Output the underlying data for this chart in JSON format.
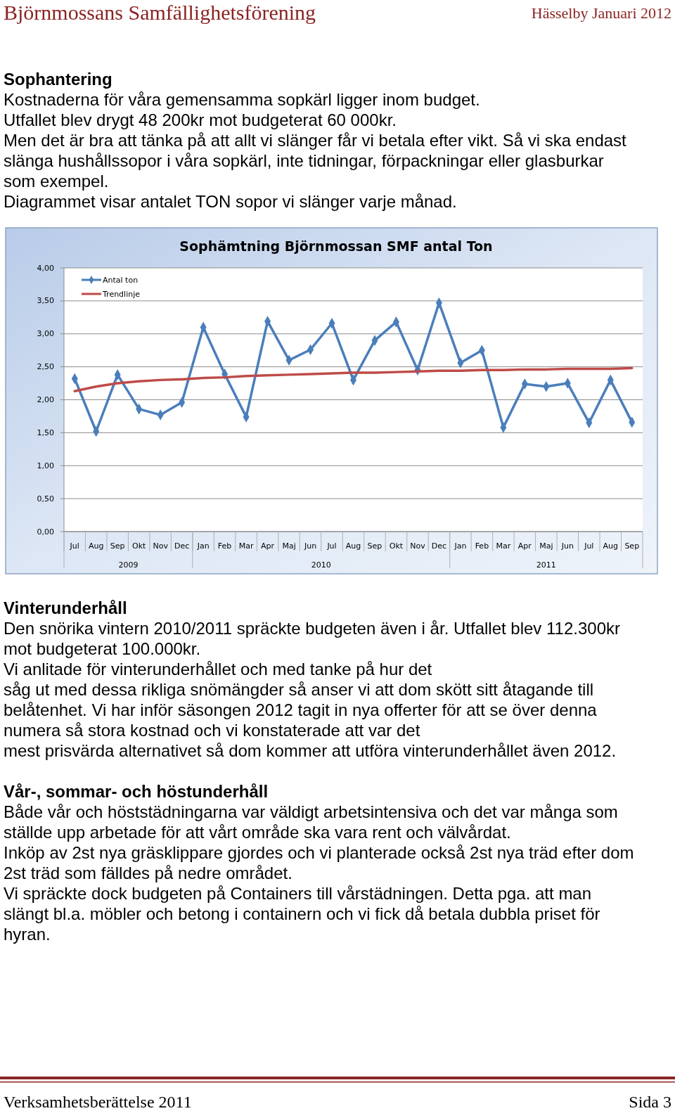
{
  "chart_data": {
    "type": "line",
    "title": "Sophämtning Björnmossan SMF antal Ton",
    "categories": [
      "Jul",
      "Aug",
      "Sep",
      "Okt",
      "Nov",
      "Dec",
      "Jan",
      "Feb",
      "Mar",
      "Apr",
      "Maj",
      "Jun",
      "Jul",
      "Aug",
      "Sep",
      "Okt",
      "Nov",
      "Dec",
      "Jan",
      "Feb",
      "Mar",
      "Apr",
      "Maj",
      "Jun",
      "Jul",
      "Aug",
      "Sep"
    ],
    "series": [
      {
        "name": "Antal ton",
        "color": "#4a7ebb",
        "marker": "diamond",
        "values": [
          2.32,
          1.52,
          2.38,
          1.86,
          1.77,
          1.96,
          3.1,
          2.39,
          1.74,
          3.19,
          2.6,
          2.76,
          3.16,
          2.3,
          2.9,
          3.18,
          2.45,
          3.47,
          2.56,
          2.75,
          1.58,
          2.24,
          2.2,
          2.25,
          1.65,
          2.3,
          1.66
        ]
      },
      {
        "name": "Trendlinje",
        "color": "#be4b48",
        "marker": "none",
        "values": [
          2.13,
          2.2,
          2.25,
          2.28,
          2.3,
          2.31,
          2.33,
          2.34,
          2.36,
          2.37,
          2.38,
          2.39,
          2.4,
          2.41,
          2.41,
          2.42,
          2.43,
          2.44,
          2.44,
          2.45,
          2.45,
          2.46,
          2.46,
          2.47,
          2.47,
          2.47,
          2.48
        ]
      }
    ],
    "ylim": [
      0,
      4
    ],
    "yticks": [
      {
        "value": 0,
        "label": "0,00"
      },
      {
        "value": 0.5,
        "label": "0,50"
      },
      {
        "value": 1,
        "label": "1,00"
      },
      {
        "value": 1.5,
        "label": "1,50"
      },
      {
        "value": 2,
        "label": "2,00"
      },
      {
        "value": 2.5,
        "label": "2,50"
      },
      {
        "value": 3,
        "label": "3,00"
      },
      {
        "value": 3.5,
        "label": "3,50"
      },
      {
        "value": 4,
        "label": "4,00"
      }
    ],
    "grid": "y",
    "legend": "top left",
    "line_style": "solid",
    "annotations": [
      "2009",
      "2010",
      "2011",
      "Björnmossans Samfällighetsförening",
      "Hässelby Januari 2012",
      "Sophantering",
      "Kostnaderna för våra gemensamma sopkärl ligger inom budget.",
      "Utfallet blev drygt 48 200kr mot budgeterat 60 000kr.",
      "Men det är bra att tänka på att allt vi slänger får vi betala efter vikt. Så vi ska endast",
      "slänga hushållssopor i våra sopkärl, inte tidningar, förpackningar eller glasburkar",
      "som exempel.",
      "Diagrammet visar antalet TON sopor vi slänger varje månad.",
      "Vinterunderhåll",
      "Den snörika vintern 2010/2011 spräckte budgeten även i år. Utfallet blev 112.300kr",
      "mot budgeterat 100.000kr.",
      "Vi anlitade för vinterunderhållet och med tanke på hur det",
      "såg ut med dessa rikliga snömängder så anser vi att dom skött sitt åtagande till",
      "belåtenhet. Vi har inför säsongen 2012 tagit in nya offerter för att se över denna",
      "numera så stora kostnad och vi konstaterade att var det",
      "mest prisvärda alternativet så dom kommer att utföra vinterunderhållet även 2012.",
      "Vår-, sommar- och höstunderhåll",
      "Både vår och höststädningarna var väldigt arbetsintensiva och det var många som",
      "ställde upp arbetade för att vårt område ska vara rent och välvårdat.",
      "Inköp av 2st nya gräsklippare gjordes och vi planterade också 2st nya träd efter dom",
      "2st träd som fälldes på nedre området.",
      "Vi spräckte dock budgeten på Containers till vårstädningen. Detta pga. att man",
      "slängt bl.a. möbler och betong i containern och vi fick då betala dubbla priset för",
      "hyran.",
      "Verksamhetsberättelse 2011",
      "Sida 3"
    ]
  }
}
